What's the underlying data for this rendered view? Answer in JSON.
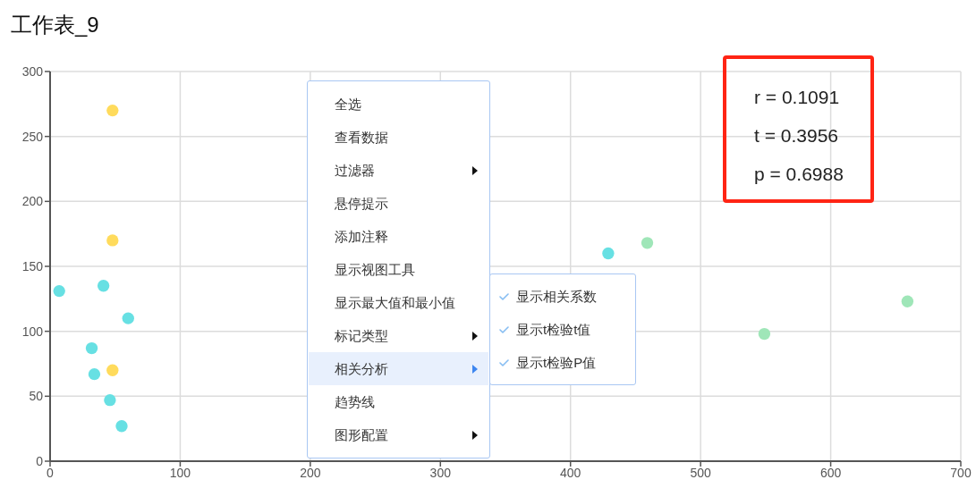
{
  "chart_data": {
    "type": "scatter",
    "title": "工作表_9",
    "series": [
      {
        "color": "#67e0e3",
        "x": [
          7,
          41,
          60,
          32,
          34,
          46,
          55,
          429
        ],
        "values": [
          131,
          135,
          110,
          87,
          67,
          47,
          27,
          160
        ]
      },
      {
        "color": "#ffdb5c",
        "x": [
          48,
          48,
          48
        ],
        "values": [
          270,
          170,
          70
        ]
      },
      {
        "color": "#9fe6b8",
        "x": [
          459,
          549,
          659
        ],
        "values": [
          168,
          98,
          123
        ]
      }
    ],
    "xlim": [
      0,
      700
    ],
    "xticks": [
      0,
      100,
      200,
      300,
      400,
      500,
      600,
      700
    ],
    "ylim": [
      0,
      300
    ],
    "yticks": [
      0,
      50,
      100,
      150,
      200,
      250,
      300
    ],
    "grid": true,
    "marker": "circle",
    "annotations": [
      "r = 0.1091",
      "t = 0.3956",
      "p = 0.6988",
      "全选",
      "查看数据",
      "过滤器",
      "悬停提示",
      "添加注释",
      "显示视图工具",
      "显示最大值和最小值",
      "标记类型",
      "相关分析",
      "趋势线",
      "图形配置",
      "显示相关系数",
      "显示t检验t值",
      "显示t检验P值"
    ]
  }
}
